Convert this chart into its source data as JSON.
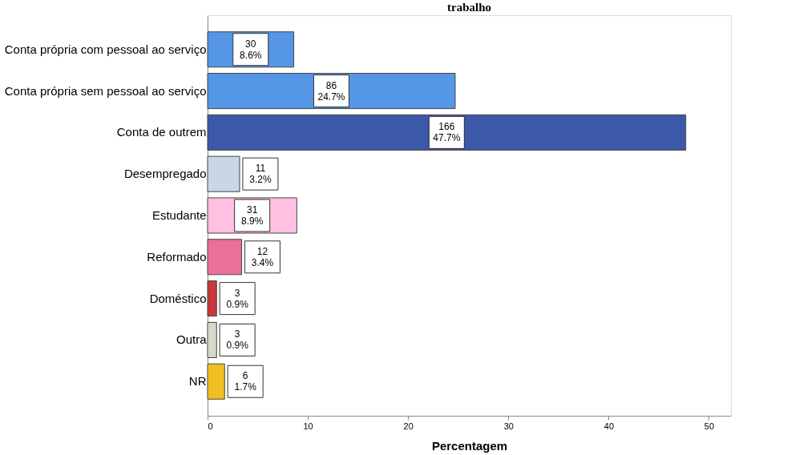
{
  "chart_data": {
    "type": "bar",
    "orientation": "horizontal",
    "title": "trabalho",
    "xlabel": "Percentagem",
    "categories": [
      "Conta própria com pessoal ao serviço",
      "Conta própria sem pessoal ao serviço",
      "Conta de outrem",
      "Desempregado",
      "Estudante",
      "Reformado",
      "Doméstico",
      "Outra",
      "NR"
    ],
    "values": [
      8.6,
      24.7,
      47.7,
      3.2,
      8.9,
      3.4,
      0.9,
      0.9,
      1.7
    ],
    "colors": [
      "#5596e6",
      "#5596e6",
      "#3c58a8",
      "#c8d6e8",
      "#ffc0e1",
      "#e8709a",
      "#c8383c",
      "#d8d8c8",
      "#f0c020"
    ],
    "value_labels": [
      "30\n8.6%",
      "86\n24.7%",
      "166\n47.7%",
      "11\n3.2%",
      "31\n8.9%",
      "12\n3.4%",
      "3\n0.9%",
      "3\n0.9%",
      "6\n1.7%"
    ],
    "xlim": [
      0,
      52.2
    ],
    "xticks": [
      0,
      10,
      20,
      30,
      40,
      50
    ],
    "grid": false,
    "legend": false
  }
}
